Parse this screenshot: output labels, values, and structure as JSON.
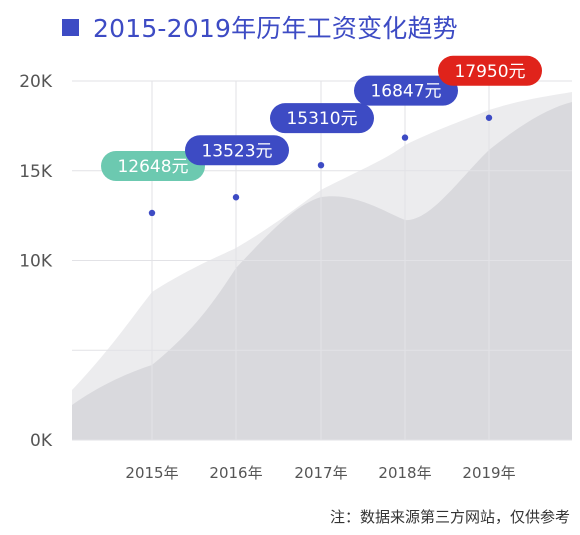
{
  "header": {
    "title": "2015-2019年历年工资变化趋势"
  },
  "chart_data": {
    "type": "area",
    "title": "2015-2019年历年工资变化趋势",
    "categories": [
      "2015年",
      "2016年",
      "2017年",
      "2018年",
      "2019年"
    ],
    "values": [
      12648,
      13523,
      15310,
      16847,
      17950
    ],
    "value_labels": [
      "12648元",
      "13523元",
      "15310元",
      "16847元",
      "17950元"
    ],
    "y_ticks": [
      0,
      5000,
      10000,
      15000,
      20000
    ],
    "y_tick_labels": [
      "0K",
      "",
      "10K",
      "15K",
      "20K"
    ],
    "ylim": [
      0,
      20000
    ],
    "xlabel": "",
    "ylabel": "",
    "grid": true,
    "colors": {
      "first": "#6cc9b0",
      "middle": "#3d4bc4",
      "last": "#e0231b",
      "point": "#3d4bc4",
      "area_back": "#ececee",
      "area_front": "#d9d9dd"
    }
  },
  "footer": {
    "note": "注：数据来源第三方网站，仅供参考"
  }
}
